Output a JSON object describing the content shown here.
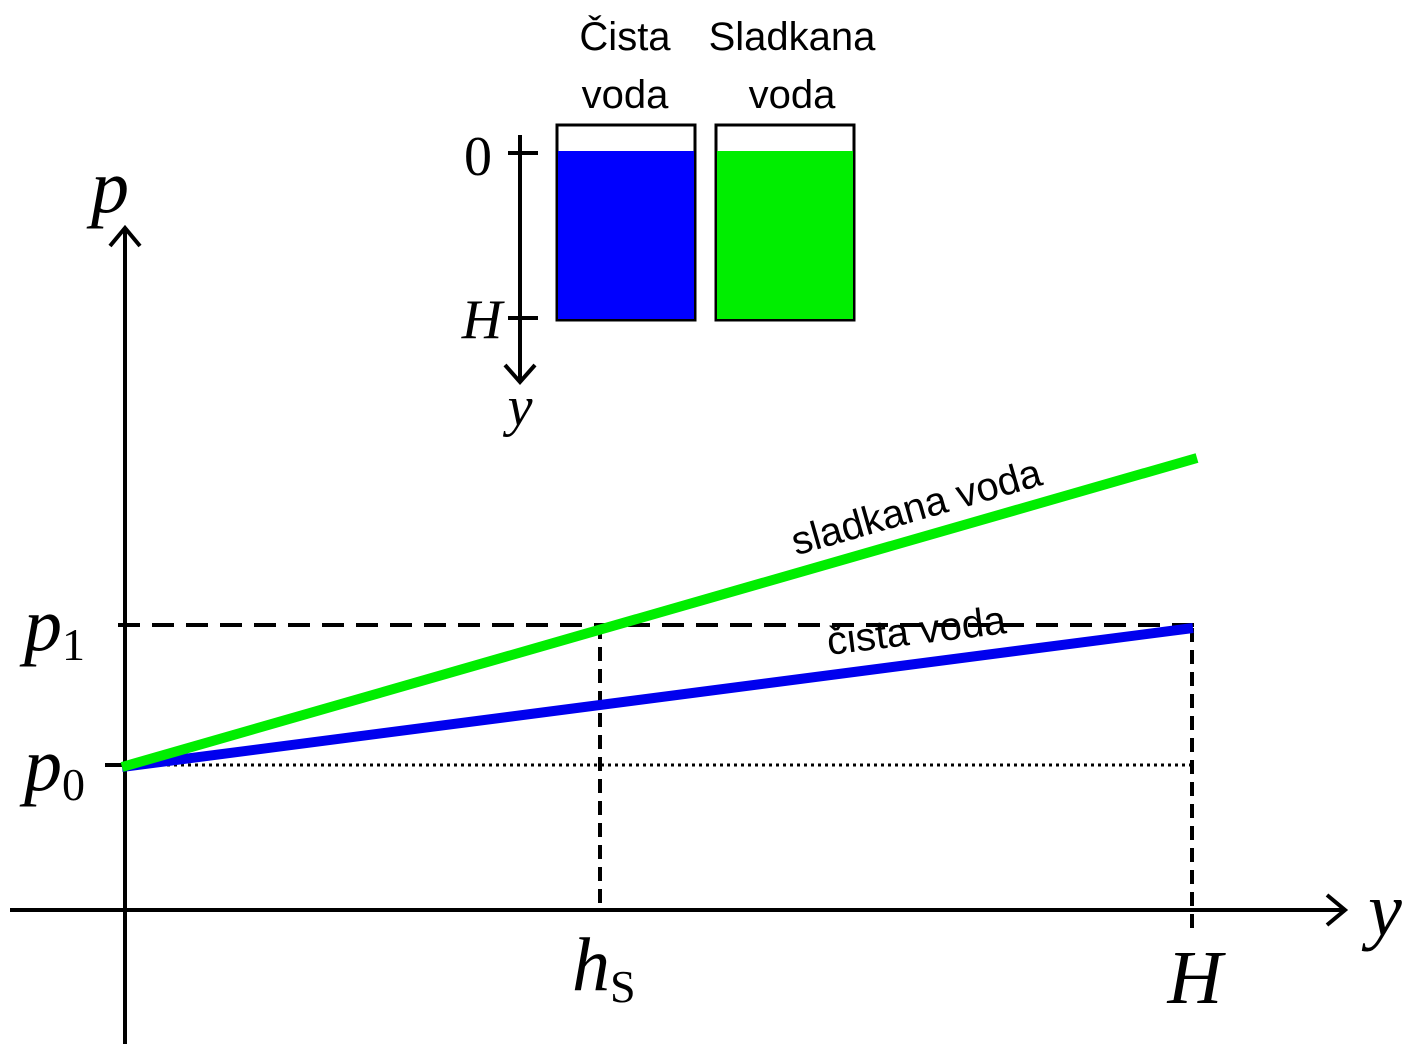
{
  "inset": {
    "columns": [
      {
        "line1": "Čista",
        "line2": "voda"
      },
      {
        "line1": "Sladkana",
        "line2": "voda"
      }
    ],
    "axis_top": "0",
    "axis_bottom": "H",
    "axis_label": "y"
  },
  "graph": {
    "y_axis_label": "p",
    "x_axis_label": "y",
    "p1": {
      "base": "p",
      "sub": "1"
    },
    "p0": {
      "base": "p",
      "sub": "0"
    },
    "hs": {
      "base": "h",
      "sub": "S"
    },
    "H": "H",
    "line_sweet": "sladkana voda",
    "line_pure": "čista voda"
  }
}
